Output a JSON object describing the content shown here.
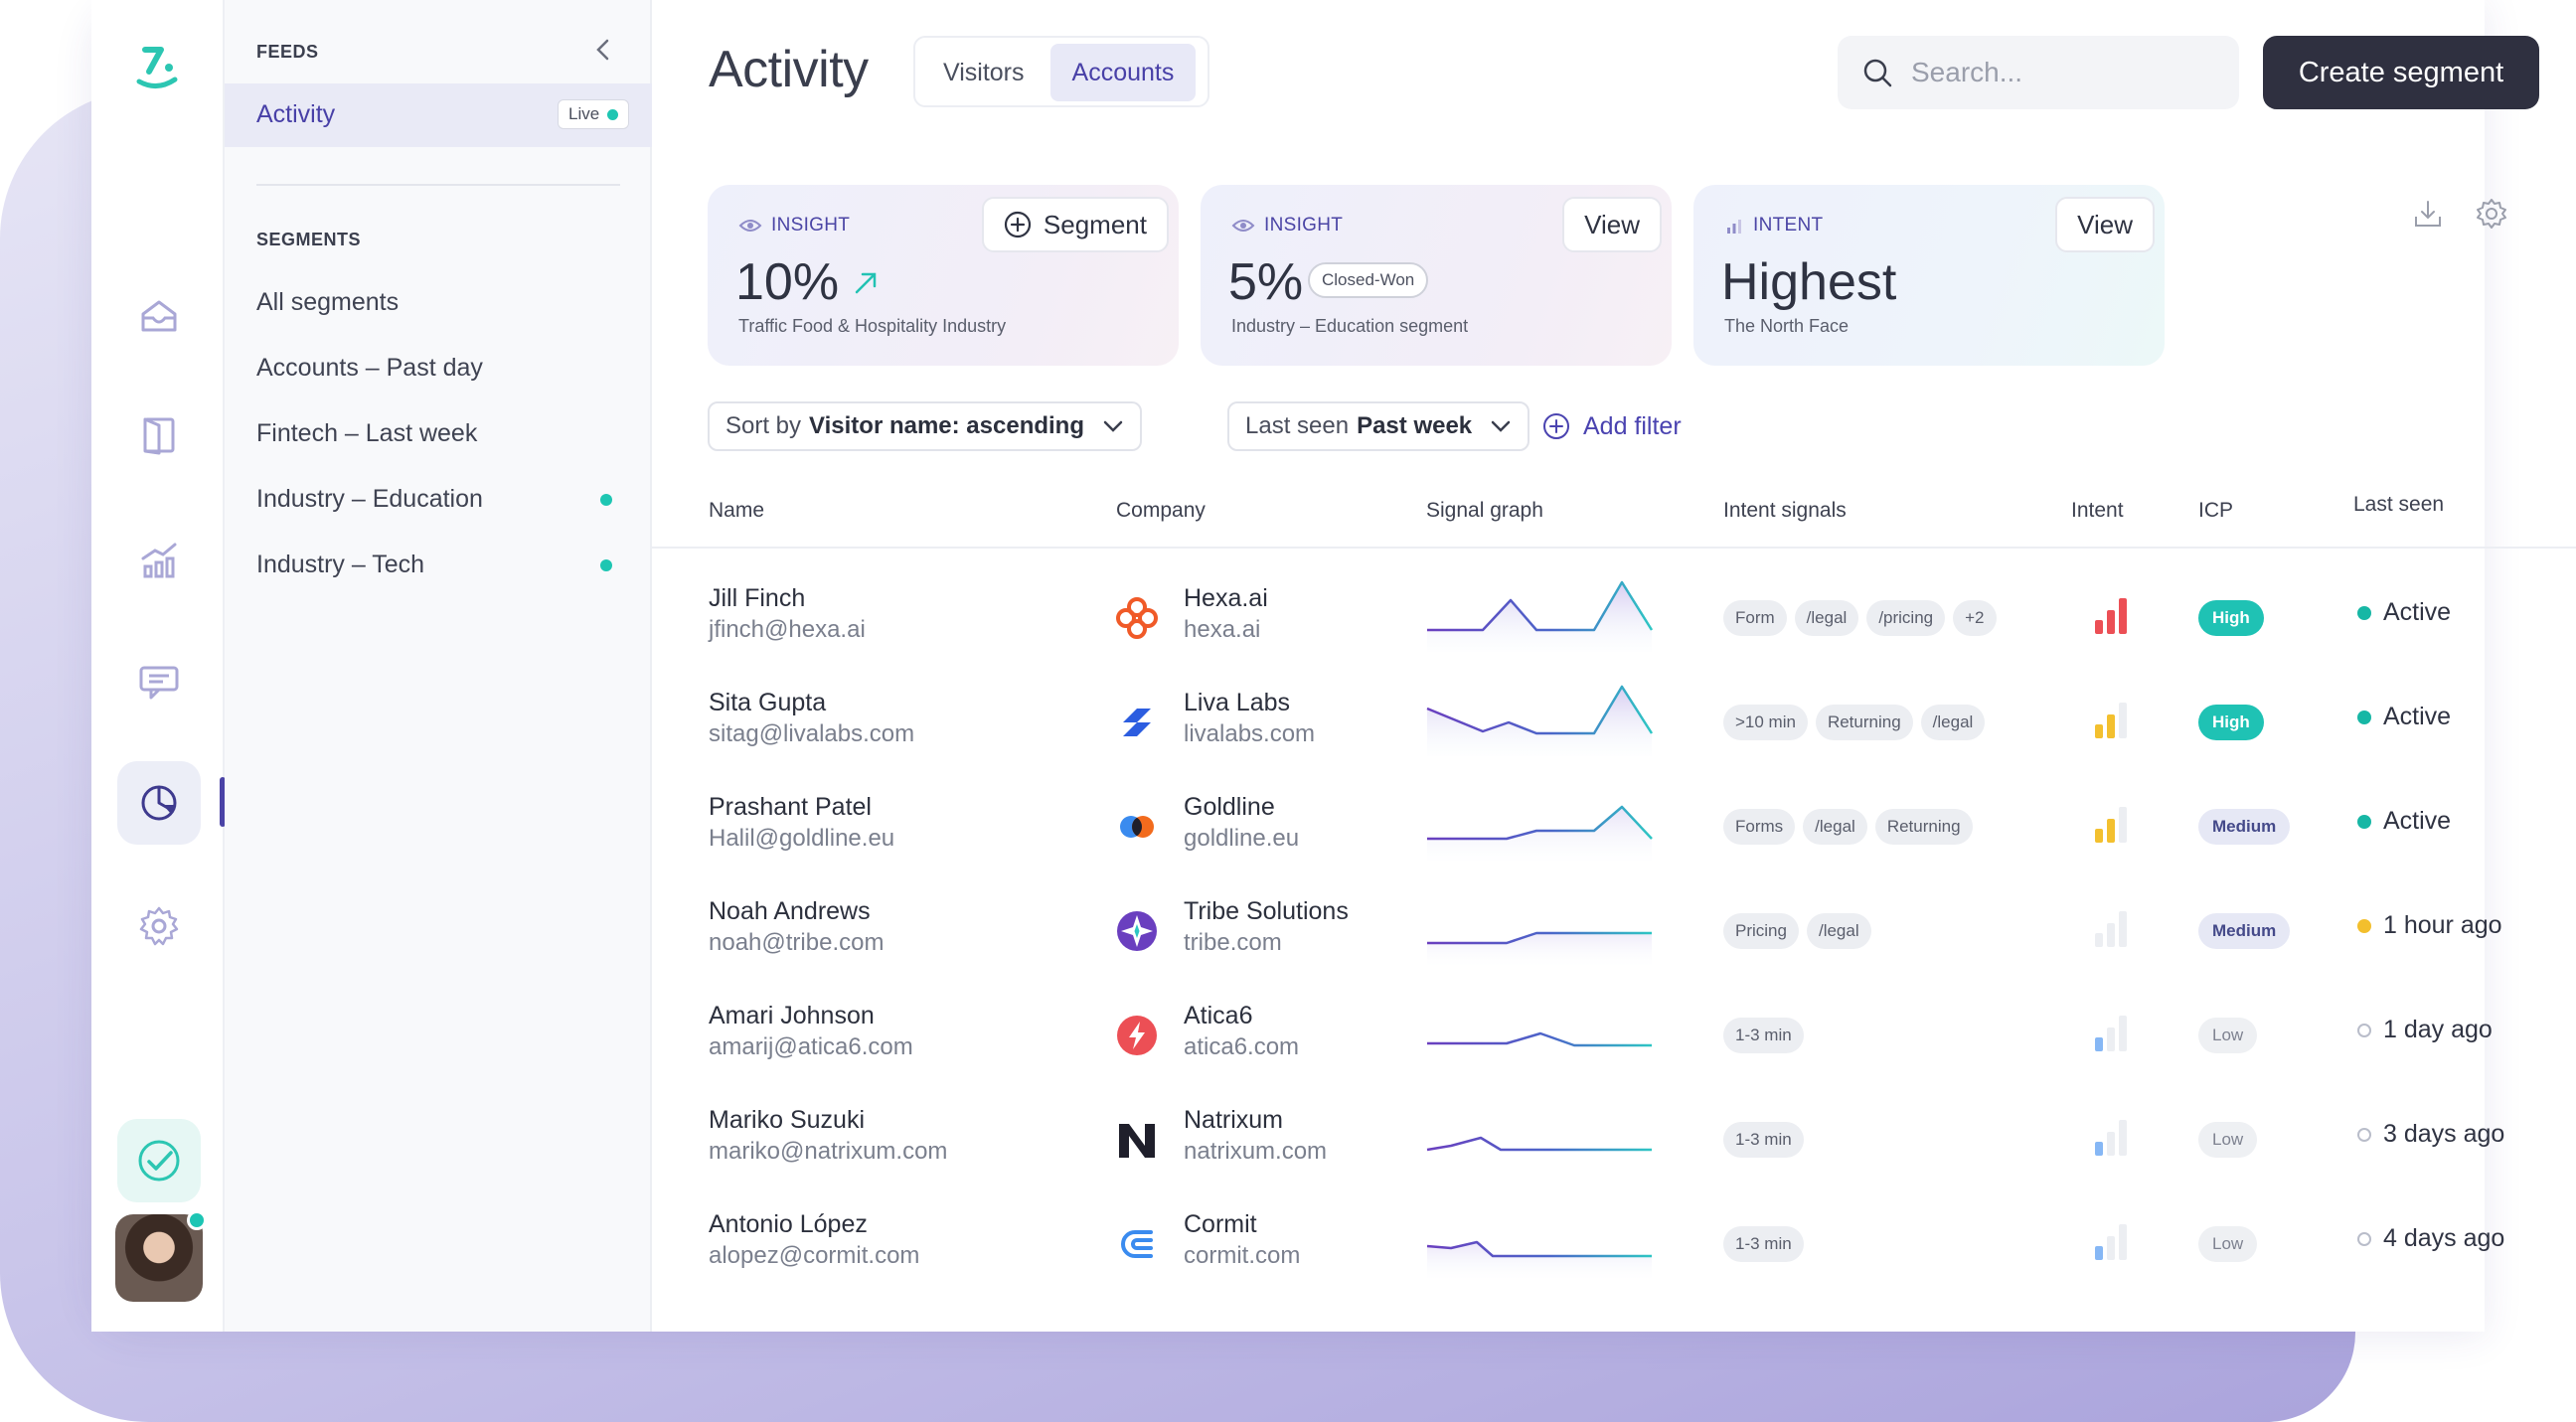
{
  "feeds": {
    "section_title": "FEEDS",
    "active_item": {
      "label": "Activity",
      "badge": "Live"
    },
    "segments_title": "SEGMENTS",
    "segments": [
      {
        "label": "All segments",
        "dot": false
      },
      {
        "label": "Accounts – Past day",
        "dot": false
      },
      {
        "label": "Fintech – Last week",
        "dot": false
      },
      {
        "label": "Industry – Education",
        "dot": true
      },
      {
        "label": "Industry – Tech",
        "dot": true
      }
    ]
  },
  "header": {
    "title": "Activity",
    "tabs": [
      {
        "label": "Visitors",
        "active": false
      },
      {
        "label": "Accounts",
        "active": true
      }
    ],
    "search_placeholder": "Search...",
    "create_button": "Create segment"
  },
  "cards": [
    {
      "kicker": "INSIGHT",
      "value": "10%",
      "subtitle": "Traffic Food & Hospitality Industry",
      "button": "Segment"
    },
    {
      "kicker": "INSIGHT",
      "value": "5%",
      "pill": "Closed-Won",
      "subtitle": "Industry – Education segment",
      "button": "View"
    },
    {
      "kicker": "INTENT",
      "value": "Highest",
      "subtitle": "The North Face",
      "button": "View"
    }
  ],
  "filters": {
    "sort_prefix": "Sort by",
    "sort_value": "Visitor name: ascending",
    "last_seen_prefix": "Last seen",
    "last_seen_value": "Past week",
    "add_filter": "Add filter"
  },
  "table": {
    "columns": [
      "Name",
      "Company",
      "Signal graph",
      "Intent signals",
      "Intent",
      "ICP",
      "Last seen"
    ],
    "rows": [
      {
        "name": "Jill Finch",
        "email": "jfinch@hexa.ai",
        "company": "Hexa.ai",
        "domain": "hexa.ai",
        "tags": [
          "Form",
          "/legal",
          "/pricing",
          "+2"
        ],
        "intent": 3,
        "icp": "High",
        "last_seen": "Active",
        "status": "active"
      },
      {
        "name": "Sita Gupta",
        "email": "sitag@livalabs.com",
        "company": "Liva Labs",
        "domain": "livalabs.com",
        "tags": [
          ">10 min",
          "Returning",
          "/legal"
        ],
        "intent": 2,
        "icp": "High",
        "last_seen": "Active",
        "status": "active"
      },
      {
        "name": "Prashant Patel",
        "email": "Halil@goldline.eu",
        "company": "Goldline",
        "domain": "goldline.eu",
        "tags": [
          "Forms",
          "/legal",
          "Returning"
        ],
        "intent": 2,
        "icp": "Medium",
        "last_seen": "Active",
        "status": "active"
      },
      {
        "name": "Noah Andrews",
        "email": "noah@tribe.com",
        "company": "Tribe Solutions",
        "domain": "tribe.com",
        "tags": [
          "Pricing",
          "/legal"
        ],
        "intent": 0,
        "icp": "Medium",
        "last_seen": "1 hour ago",
        "status": "recent"
      },
      {
        "name": "Amari Johnson",
        "email": "amarij@atica6.com",
        "company": "Atica6",
        "domain": "atica6.com",
        "tags": [
          "1-3 min"
        ],
        "intent": 1,
        "icp": "Low",
        "last_seen": "1 day ago",
        "status": "old"
      },
      {
        "name": "Mariko Suzuki",
        "email": "mariko@natrixum.com",
        "company": "Natrixum",
        "domain": "natrixum.com",
        "tags": [
          "1-3 min"
        ],
        "intent": 1,
        "icp": "Low",
        "last_seen": "3 days ago",
        "status": "old"
      },
      {
        "name": "Antonio López",
        "email": "alopez@cormit.com",
        "company": "Cormit",
        "domain": "cormit.com",
        "tags": [
          "1-3 min"
        ],
        "intent": 1,
        "icp": "Low",
        "last_seen": "4 days ago",
        "status": "old"
      }
    ]
  },
  "colors": {
    "brand": "#4840a7",
    "accent": "#1ec6b2",
    "dark_button": "#2f3040"
  }
}
